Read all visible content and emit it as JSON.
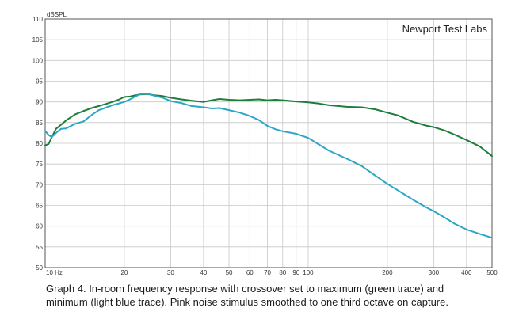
{
  "chart_data": {
    "type": "line",
    "title": "Newport Test Labs",
    "ylabel": "dBSPL",
    "xlabel": "",
    "x_scale": "log",
    "xlim": [
      10,
      500
    ],
    "ylim": [
      50,
      110
    ],
    "grid": true,
    "x_ticks": [
      {
        "value": 10,
        "label": "10 Hz"
      },
      {
        "value": 20,
        "label": "20"
      },
      {
        "value": 30,
        "label": "30"
      },
      {
        "value": 40,
        "label": "40"
      },
      {
        "value": 50,
        "label": "50"
      },
      {
        "value": 60,
        "label": "60"
      },
      {
        "value": 70,
        "label": "70"
      },
      {
        "value": 80,
        "label": "80"
      },
      {
        "value": 90,
        "label": "90"
      },
      {
        "value": 100,
        "label": "100"
      },
      {
        "value": 200,
        "label": "200"
      },
      {
        "value": 300,
        "label": "300"
      },
      {
        "value": 400,
        "label": "400"
      },
      {
        "value": 500,
        "label": "500"
      }
    ],
    "y_ticks": [
      50,
      55,
      60,
      65,
      70,
      75,
      80,
      85,
      90,
      95,
      100,
      105,
      110
    ],
    "series": [
      {
        "color": "#1e7d3a",
        "x": [
          10,
          10.3,
          10.6,
          11,
          11.5,
          12,
          13,
          14,
          15,
          16,
          17,
          18,
          19,
          20,
          21,
          22,
          23,
          24,
          25,
          26,
          28,
          30,
          33,
          36,
          40,
          43,
          46,
          50,
          55,
          60,
          65,
          70,
          75,
          80,
          90,
          100,
          110,
          120,
          140,
          160,
          180,
          200,
          220,
          250,
          280,
          300,
          330,
          360,
          400,
          450,
          500
        ],
        "y": [
          79.5,
          79.8,
          81.5,
          83.5,
          84.5,
          85.5,
          87,
          87.8,
          88.5,
          89,
          89.5,
          90,
          90.5,
          91.2,
          91.3,
          91.6,
          91.8,
          91.9,
          91.8,
          91.6,
          91.4,
          91,
          90.6,
          90.3,
          90,
          90.4,
          90.7,
          90.5,
          90.4,
          90.5,
          90.6,
          90.4,
          90.5,
          90.4,
          90.1,
          89.9,
          89.6,
          89.2,
          88.8,
          88.7,
          88.2,
          87.4,
          86.7,
          85.2,
          84.3,
          83.9,
          83.1,
          82.1,
          80.8,
          79.2,
          76.9
        ]
      },
      {
        "color": "#2aa6c6",
        "x": [
          10,
          10.3,
          10.6,
          11,
          11.5,
          12,
          13,
          14,
          15,
          16,
          17,
          18,
          19,
          20,
          21,
          22,
          23,
          24,
          25,
          26,
          28,
          30,
          33,
          36,
          40,
          43,
          46,
          50,
          55,
          60,
          65,
          70,
          75,
          80,
          90,
          100,
          110,
          120,
          140,
          160,
          180,
          200,
          220,
          250,
          280,
          300,
          330,
          360,
          400,
          450,
          500
        ],
        "y": [
          83,
          82,
          81.5,
          82.5,
          83.5,
          83.6,
          84.7,
          85.3,
          86.8,
          88,
          88.6,
          89.2,
          89.6,
          90,
          90.6,
          91.3,
          91.9,
          92,
          91.8,
          91.5,
          91,
          90.2,
          89.7,
          89,
          88.7,
          88.4,
          88.5,
          88,
          87.4,
          86.6,
          85.6,
          84.2,
          83.4,
          82.9,
          82.3,
          81.3,
          79.7,
          78.2,
          76.3,
          74.5,
          72.2,
          70.2,
          68.6,
          66.4,
          64.6,
          63.6,
          62.1,
          60.6,
          59.2,
          58.1,
          57.2
        ]
      }
    ]
  },
  "caption": {
    "line1": "Graph 4. In-room frequency response with crossover set to maximum (green trace) and",
    "line2": "minimum (light blue trace). Pink noise stimulus smoothed to one third octave on capture."
  }
}
